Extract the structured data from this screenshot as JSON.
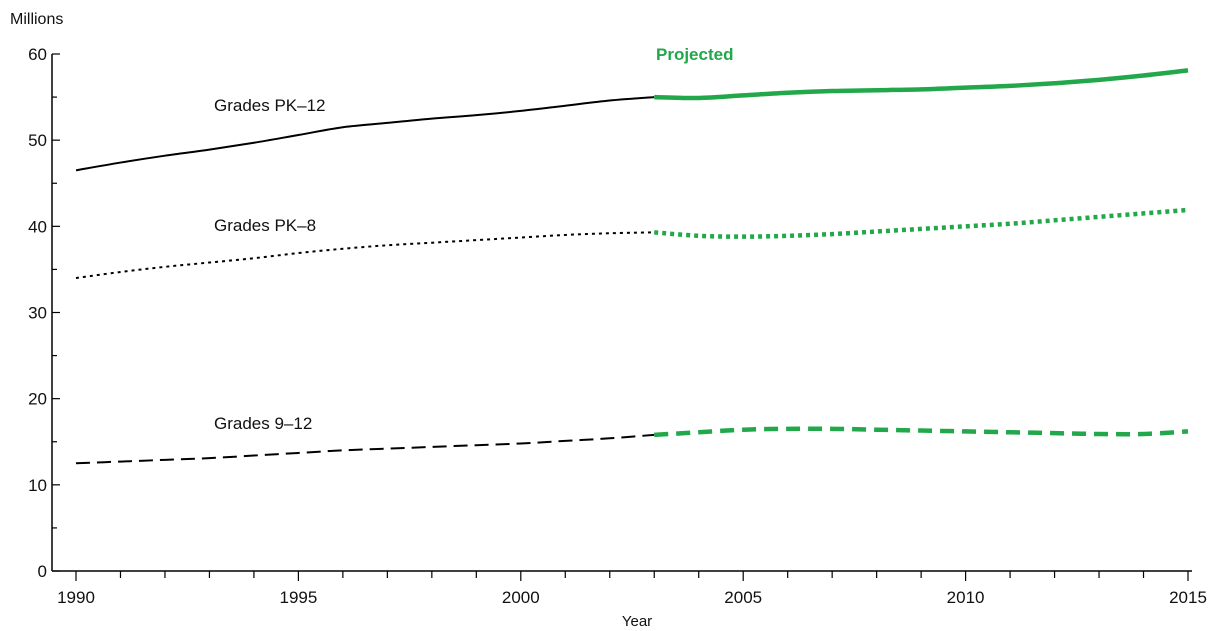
{
  "chart_data": {
    "type": "line",
    "title": "",
    "unit_label": "Millions",
    "xlabel": "Year",
    "ylabel": "",
    "xlim": [
      1990,
      2015
    ],
    "ylim": [
      0,
      60
    ],
    "x_ticks": [
      1990,
      1995,
      2000,
      2005,
      2010,
      2015
    ],
    "y_ticks": [
      0,
      10,
      20,
      30,
      40,
      50,
      60
    ],
    "grid": false,
    "projection_label": "Projected",
    "projection_color": "#22a84a",
    "actual_color": "#000000",
    "series": [
      {
        "name": "Grades PK–12",
        "label": "Grades PK–12",
        "style": "solid",
        "x": [
          1990,
          1991,
          1992,
          1993,
          1994,
          1995,
          1996,
          1997,
          1998,
          1999,
          2000,
          2001,
          2002,
          2003,
          2004,
          2005,
          2006,
          2007,
          2008,
          2009,
          2010,
          2011,
          2012,
          2013,
          2014,
          2015
        ],
        "values": [
          46.5,
          47.4,
          48.2,
          48.9,
          49.7,
          50.6,
          51.5,
          52.0,
          52.5,
          52.9,
          53.4,
          54.0,
          54.6,
          55.0,
          54.9,
          55.2,
          55.5,
          55.7,
          55.8,
          55.9,
          56.1,
          56.3,
          56.6,
          57.0,
          57.5,
          58.1
        ],
        "projected_from": 2003
      },
      {
        "name": "Grades PK–8",
        "label": "Grades PK–8",
        "style": "dotted",
        "x": [
          1990,
          1991,
          1992,
          1993,
          1994,
          1995,
          1996,
          1997,
          1998,
          1999,
          2000,
          2001,
          2002,
          2003,
          2004,
          2005,
          2006,
          2007,
          2008,
          2009,
          2010,
          2011,
          2012,
          2013,
          2014,
          2015
        ],
        "values": [
          34.0,
          34.7,
          35.3,
          35.8,
          36.3,
          36.9,
          37.4,
          37.8,
          38.1,
          38.4,
          38.7,
          39.0,
          39.2,
          39.3,
          38.9,
          38.8,
          38.9,
          39.1,
          39.4,
          39.7,
          40.0,
          40.3,
          40.7,
          41.1,
          41.5,
          41.9
        ],
        "projected_from": 2003
      },
      {
        "name": "Grades 9–12",
        "label": "Grades 9–12",
        "style": "dashed",
        "x": [
          1990,
          1991,
          1992,
          1993,
          1994,
          1995,
          1996,
          1997,
          1998,
          1999,
          2000,
          2001,
          2002,
          2003,
          2004,
          2005,
          2006,
          2007,
          2008,
          2009,
          2010,
          2011,
          2012,
          2013,
          2014,
          2015
        ],
        "values": [
          12.5,
          12.7,
          12.9,
          13.1,
          13.4,
          13.7,
          14.0,
          14.2,
          14.4,
          14.6,
          14.8,
          15.1,
          15.4,
          15.8,
          16.1,
          16.4,
          16.5,
          16.5,
          16.4,
          16.3,
          16.2,
          16.1,
          16.0,
          15.9,
          15.9,
          16.2
        ],
        "projected_from": 2003
      }
    ]
  }
}
